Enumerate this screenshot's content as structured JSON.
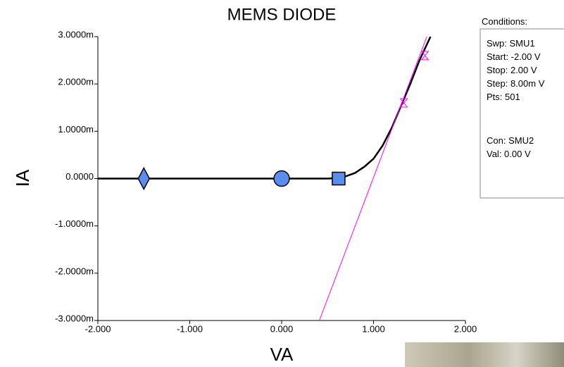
{
  "chart_data": {
    "type": "line",
    "title": "MEMS DIODE",
    "x_label": "VA",
    "y_label": "IA",
    "xlim": [
      -2,
      2
    ],
    "ylim": [
      -0.003,
      0.003
    ],
    "xticks": [
      {
        "value": -2,
        "label": "-2.000"
      },
      {
        "value": -1,
        "label": "-1.000"
      },
      {
        "value": 0,
        "label": "0.000"
      },
      {
        "value": 1,
        "label": "1.000"
      },
      {
        "value": 2,
        "label": "2.000"
      }
    ],
    "yticks": [
      {
        "value": -0.003,
        "label": "-3.0000m"
      },
      {
        "value": -0.002,
        "label": "-2.0000m"
      },
      {
        "value": -0.001,
        "label": "-1.0000m"
      },
      {
        "value": 0,
        "label": "0.0000"
      },
      {
        "value": 0.001,
        "label": "1.0000m"
      },
      {
        "value": 0.002,
        "label": "2.0000m"
      },
      {
        "value": 0.003,
        "label": "3.0000m"
      }
    ],
    "series": [
      {
        "color": "#000000",
        "x": [
          -2,
          -1.5,
          -1,
          -0.5,
          0,
          0.5,
          0.6,
          0.7,
          0.8,
          0.9,
          1.0,
          1.1,
          1.2,
          1.3,
          1.4,
          1.5,
          1.62
        ],
        "values": [
          0,
          0,
          0,
          0,
          0,
          0,
          1e-05,
          5e-05,
          0.00012,
          0.00025,
          0.00042,
          0.0007,
          0.00108,
          0.00154,
          0.002,
          0.0025,
          0.003
        ]
      },
      {
        "color": "#ff00ff",
        "x": [
          0.41,
          1.58
        ],
        "values": [
          -0.003,
          0.003
        ]
      }
    ],
    "markers": [
      {
        "shape": "diamond",
        "x": -1.5,
        "y": 0,
        "color": "#5b8def"
      },
      {
        "shape": "circle",
        "x": 0,
        "y": 0,
        "color": "#5b8def"
      },
      {
        "shape": "square",
        "x": 0.62,
        "y": 0,
        "color": "#5b8def"
      }
    ],
    "cursors": {
      "color": "#ff00ff",
      "x": [
        1.33,
        1.56
      ],
      "y": [
        0.0016,
        0.0026
      ]
    }
  },
  "conditions": {
    "title": "Conditions:",
    "lines": [
      "Swp: SMU1",
      "Start: -2.00 V",
      "Stop: 2.00 V",
      "Step: 8.00m V",
      "Pts: 501"
    ],
    "lines2": [
      "Con: SMU2",
      "Val: 0.00 V"
    ]
  }
}
